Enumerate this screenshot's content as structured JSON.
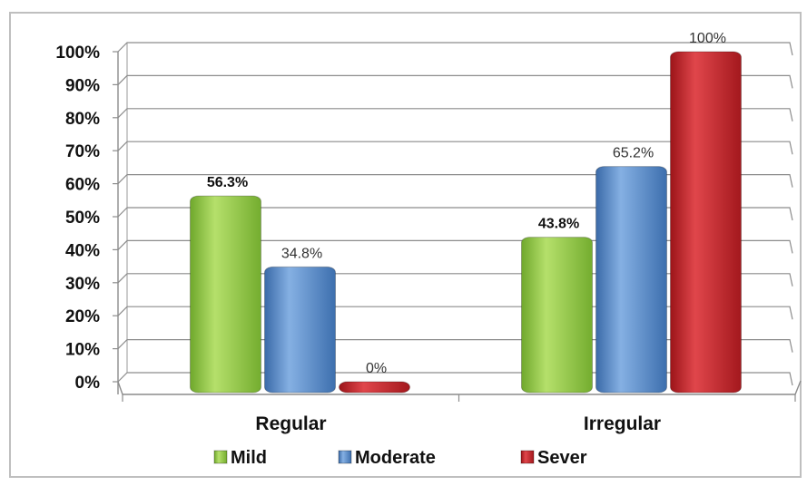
{
  "chart_data": {
    "type": "bar",
    "categories": [
      "Regular",
      "Irregular"
    ],
    "series": [
      {
        "name": "Mild",
        "values": [
          56.3,
          43.8
        ],
        "labels": [
          "56.3%",
          "43.8%"
        ],
        "color": "#8cc63f",
        "label_bold": true
      },
      {
        "name": "Moderate",
        "values": [
          34.8,
          65.2
        ],
        "labels": [
          "34.8%",
          "65.2%"
        ],
        "color": "#4f81bd",
        "label_bold": false
      },
      {
        "name": "Sever",
        "values": [
          0,
          100
        ],
        "labels": [
          "0%",
          "100%"
        ],
        "color": "#c0272d",
        "label_bold": false
      }
    ],
    "y_ticks": [
      "0%",
      "10%",
      "20%",
      "30%",
      "40%",
      "50%",
      "60%",
      "70%",
      "80%",
      "90%",
      "100%"
    ],
    "ylim": [
      0,
      100
    ],
    "grid": true,
    "legend_position": "bottom",
    "title": "",
    "xlabel": "",
    "ylabel": ""
  }
}
